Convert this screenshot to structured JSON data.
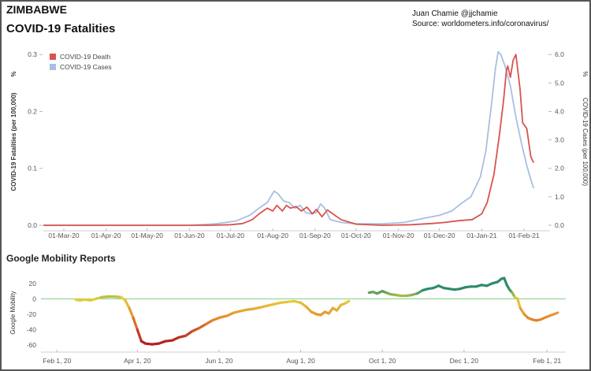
{
  "header": {
    "title_line1": "ZIMBABWE",
    "title_line2": "COVID-19 Fatalities",
    "credit_author": "Juan Chamie @jjchamie",
    "credit_source": "Source: worldometers.info/coronavirus/"
  },
  "chart_data": [
    {
      "type": "line",
      "ylabel": "COVID-19 Fatalities (per 100,000)",
      "ylabel_unit": "%",
      "y2label": "COVID-19 Cases (per 100,000)",
      "y2label_unit": "%",
      "yticks": [
        "0.0",
        "0.1",
        "0.2",
        "0.3"
      ],
      "ylim": [
        0,
        0.31
      ],
      "y2ticks": [
        "0.0",
        "1.0",
        "2.0",
        "3.0",
        "4.0",
        "5.0",
        "6.0"
      ],
      "y2lim": [
        0,
        6.2
      ],
      "xticks": [
        "01-Mar-20",
        "01-Apr-20",
        "01-May-20",
        "01-Jun-20",
        "01-Jul-20",
        "01-Aug-20",
        "01-Sep-20",
        "01-Oct-20",
        "01-Nov-20",
        "01-Dec-20",
        "01-Jan-21",
        "01-Feb-21"
      ],
      "xlim": [
        "2020-02-15",
        "2021-02-20"
      ],
      "legend": {
        "position": "top-left"
      },
      "grid": false,
      "series": [
        {
          "name": "COVID-19 Death",
          "color": "#d9534f",
          "axis": "left",
          "points": [
            [
              "2020-02-15",
              0.0
            ],
            [
              "2020-06-15",
              0.0
            ],
            [
              "2020-07-01",
              0.001
            ],
            [
              "2020-07-10",
              0.003
            ],
            [
              "2020-07-17",
              0.01
            ],
            [
              "2020-07-22",
              0.02
            ],
            [
              "2020-07-28",
              0.03
            ],
            [
              "2020-08-01",
              0.025
            ],
            [
              "2020-08-04",
              0.035
            ],
            [
              "2020-08-08",
              0.025
            ],
            [
              "2020-08-11",
              0.035
            ],
            [
              "2020-08-14",
              0.03
            ],
            [
              "2020-08-18",
              0.033
            ],
            [
              "2020-08-22",
              0.025
            ],
            [
              "2020-08-26",
              0.032
            ],
            [
              "2020-08-30",
              0.02
            ],
            [
              "2020-09-02",
              0.028
            ],
            [
              "2020-09-06",
              0.015
            ],
            [
              "2020-09-10",
              0.027
            ],
            [
              "2020-09-14",
              0.02
            ],
            [
              "2020-09-20",
              0.01
            ],
            [
              "2020-10-01",
              0.002
            ],
            [
              "2020-10-20",
              0.0
            ],
            [
              "2020-11-10",
              0.001
            ],
            [
              "2020-11-25",
              0.003
            ],
            [
              "2020-12-05",
              0.005
            ],
            [
              "2020-12-15",
              0.008
            ],
            [
              "2020-12-25",
              0.01
            ],
            [
              "2021-01-01",
              0.02
            ],
            [
              "2021-01-05",
              0.04
            ],
            [
              "2021-01-10",
              0.09
            ],
            [
              "2021-01-14",
              0.16
            ],
            [
              "2021-01-17",
              0.22
            ],
            [
              "2021-01-19",
              0.27
            ],
            [
              "2021-01-20",
              0.28
            ],
            [
              "2021-01-22",
              0.26
            ],
            [
              "2021-01-24",
              0.29
            ],
            [
              "2021-01-26",
              0.3
            ],
            [
              "2021-01-29",
              0.24
            ],
            [
              "2021-01-31",
              0.18
            ],
            [
              "2021-02-03",
              0.17
            ],
            [
              "2021-02-06",
              0.12
            ],
            [
              "2021-02-08",
              0.11
            ]
          ]
        },
        {
          "name": "COVID-19 Cases",
          "color": "#a9bfe0",
          "axis": "right",
          "points": [
            [
              "2020-02-15",
              0.0
            ],
            [
              "2020-06-01",
              0.0
            ],
            [
              "2020-06-20",
              0.05
            ],
            [
              "2020-07-05",
              0.15
            ],
            [
              "2020-07-15",
              0.35
            ],
            [
              "2020-07-22",
              0.6
            ],
            [
              "2020-07-28",
              0.8
            ],
            [
              "2020-08-02",
              1.2
            ],
            [
              "2020-08-05",
              1.1
            ],
            [
              "2020-08-09",
              0.85
            ],
            [
              "2020-08-13",
              0.8
            ],
            [
              "2020-08-17",
              0.6
            ],
            [
              "2020-08-21",
              0.7
            ],
            [
              "2020-08-25",
              0.45
            ],
            [
              "2020-08-29",
              0.4
            ],
            [
              "2020-09-02",
              0.45
            ],
            [
              "2020-09-05",
              0.75
            ],
            [
              "2020-09-08",
              0.6
            ],
            [
              "2020-09-12",
              0.2
            ],
            [
              "2020-09-20",
              0.1
            ],
            [
              "2020-10-01",
              0.05
            ],
            [
              "2020-10-20",
              0.05
            ],
            [
              "2020-11-05",
              0.1
            ],
            [
              "2020-11-20",
              0.25
            ],
            [
              "2020-12-01",
              0.35
            ],
            [
              "2020-12-10",
              0.5
            ],
            [
              "2020-12-18",
              0.8
            ],
            [
              "2020-12-24",
              1.0
            ],
            [
              "2020-12-31",
              1.7
            ],
            [
              "2021-01-04",
              2.6
            ],
            [
              "2021-01-08",
              4.2
            ],
            [
              "2021-01-11",
              5.5
            ],
            [
              "2021-01-13",
              6.1
            ],
            [
              "2021-01-15",
              6.0
            ],
            [
              "2021-01-18",
              5.6
            ],
            [
              "2021-01-22",
              4.9
            ],
            [
              "2021-01-26",
              3.8
            ],
            [
              "2021-01-30",
              2.9
            ],
            [
              "2021-02-03",
              2.1
            ],
            [
              "2021-02-06",
              1.6
            ],
            [
              "2021-02-08",
              1.3
            ]
          ]
        }
      ]
    },
    {
      "type": "line",
      "title": "Google Mobility Reports",
      "ylabel": "Google Mobility",
      "yticks": [
        "-60",
        "-40",
        "-20",
        "0",
        "20"
      ],
      "ylim": [
        -63,
        27
      ],
      "xticks": [
        "Feb 1, 20",
        "Apr 1, 20",
        "Jun 1, 20",
        "Aug 1, 20",
        "Oct 1, 20",
        "Dec 1, 20",
        "Feb 1, 21"
      ],
      "xlim": [
        "2020-01-20",
        "2021-02-15"
      ],
      "reference_line": {
        "y": 0,
        "color": "#7fcf7f"
      },
      "color_scale": {
        "low": "#b22222",
        "mid_low": "#e8892b",
        "mid": "#e4d13a",
        "high": "#2e8b6a"
      },
      "segments": [
        [
          [
            "2020-02-15",
            -1
          ],
          [
            "2020-02-18",
            -2
          ],
          [
            "2020-02-22",
            -1
          ],
          [
            "2020-02-26",
            -2
          ],
          [
            "2020-03-01",
            0
          ],
          [
            "2020-03-05",
            2
          ],
          [
            "2020-03-10",
            3
          ],
          [
            "2020-03-15",
            3
          ],
          [
            "2020-03-20",
            2
          ],
          [
            "2020-03-23",
            -2
          ],
          [
            "2020-03-26",
            -12
          ],
          [
            "2020-03-29",
            -25
          ],
          [
            "2020-04-01",
            -40
          ],
          [
            "2020-04-04",
            -55
          ],
          [
            "2020-04-07",
            -58
          ],
          [
            "2020-04-12",
            -59
          ],
          [
            "2020-04-17",
            -58
          ],
          [
            "2020-04-22",
            -55
          ],
          [
            "2020-04-27",
            -54
          ],
          [
            "2020-05-02",
            -50
          ],
          [
            "2020-05-07",
            -48
          ],
          [
            "2020-05-12",
            -42
          ],
          [
            "2020-05-17",
            -38
          ],
          [
            "2020-05-22",
            -33
          ],
          [
            "2020-05-27",
            -28
          ],
          [
            "2020-06-02",
            -24
          ],
          [
            "2020-06-07",
            -22
          ],
          [
            "2020-06-12",
            -18
          ],
          [
            "2020-06-17",
            -16
          ],
          [
            "2020-06-22",
            -14
          ],
          [
            "2020-06-27",
            -13
          ],
          [
            "2020-07-02",
            -11
          ],
          [
            "2020-07-07",
            -9
          ],
          [
            "2020-07-12",
            -7
          ],
          [
            "2020-07-17",
            -5
          ],
          [
            "2020-07-22",
            -4
          ],
          [
            "2020-07-27",
            -3
          ],
          [
            "2020-08-01",
            -5
          ],
          [
            "2020-08-05",
            -10
          ],
          [
            "2020-08-09",
            -17
          ],
          [
            "2020-08-13",
            -20
          ],
          [
            "2020-08-16",
            -21
          ],
          [
            "2020-08-19",
            -17
          ],
          [
            "2020-08-22",
            -19
          ],
          [
            "2020-08-25",
            -12
          ],
          [
            "2020-08-28",
            -15
          ],
          [
            "2020-08-31",
            -8
          ],
          [
            "2020-09-03",
            -6
          ],
          [
            "2020-09-06",
            -3
          ]
        ],
        [
          [
            "2020-09-21",
            8
          ],
          [
            "2020-09-24",
            9
          ],
          [
            "2020-09-27",
            7
          ],
          [
            "2020-10-01",
            10
          ],
          [
            "2020-10-04",
            8
          ],
          [
            "2020-10-07",
            6
          ],
          [
            "2020-10-11",
            5
          ],
          [
            "2020-10-15",
            4
          ],
          [
            "2020-10-19",
            4
          ],
          [
            "2020-10-23",
            5
          ],
          [
            "2020-10-27",
            7
          ],
          [
            "2020-10-31",
            11
          ],
          [
            "2020-11-04",
            13
          ],
          [
            "2020-11-08",
            14
          ],
          [
            "2020-11-12",
            17
          ],
          [
            "2020-11-16",
            14
          ],
          [
            "2020-11-20",
            13
          ],
          [
            "2020-11-24",
            12
          ],
          [
            "2020-11-28",
            13
          ],
          [
            "2020-12-02",
            15
          ],
          [
            "2020-12-06",
            16
          ],
          [
            "2020-12-10",
            16
          ],
          [
            "2020-12-14",
            18
          ],
          [
            "2020-12-18",
            17
          ],
          [
            "2020-12-22",
            20
          ],
          [
            "2020-12-26",
            22
          ],
          [
            "2020-12-29",
            26
          ],
          [
            "2020-12-31",
            27
          ],
          [
            "2021-01-02",
            18
          ],
          [
            "2021-01-04",
            12
          ],
          [
            "2021-01-06",
            8
          ],
          [
            "2021-01-08",
            2
          ],
          [
            "2021-01-10",
            0
          ],
          [
            "2021-01-12",
            -12
          ],
          [
            "2021-01-15",
            -20
          ],
          [
            "2021-01-18",
            -25
          ],
          [
            "2021-01-21",
            -27
          ],
          [
            "2021-01-24",
            -28
          ],
          [
            "2021-01-27",
            -27
          ],
          [
            "2021-01-31",
            -24
          ],
          [
            "2021-02-03",
            -22
          ],
          [
            "2021-02-06",
            -20
          ],
          [
            "2021-02-09",
            -18
          ]
        ]
      ]
    }
  ]
}
